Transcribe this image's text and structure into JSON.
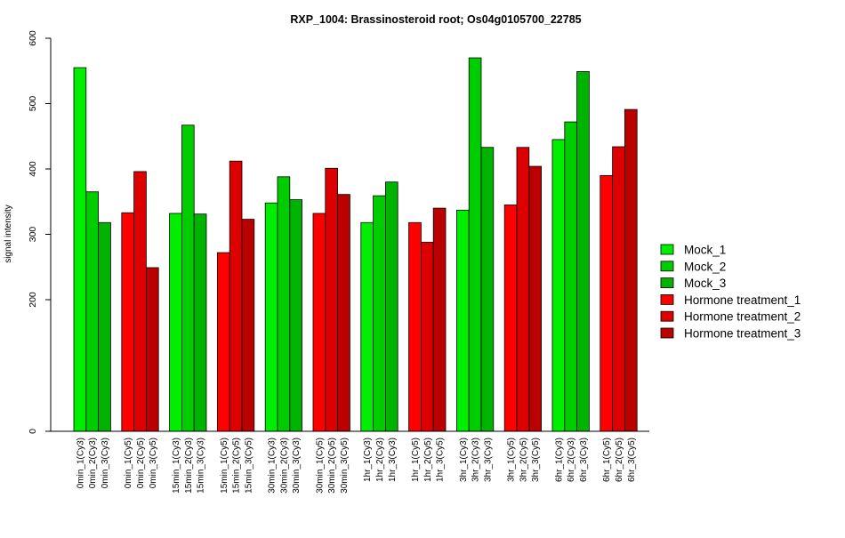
{
  "chart_data": {
    "type": "bar",
    "title": "RXP_1004: Brassinosteroid root; Os04g0105700_22785",
    "xlabel": "",
    "ylabel": "signal intensity",
    "y_ticks": [
      0,
      200,
      300,
      400,
      500,
      600
    ],
    "y_tick_labels": [
      "0",
      "200",
      "300",
      "400",
      "500",
      "600"
    ],
    "grid": false,
    "legend_position": "right",
    "groups": [
      {
        "series": "Mock",
        "labels": [
          "0min_1(Cy3)",
          "0min_2(Cy3)",
          "0min_3(Cy3)"
        ],
        "values": [
          555,
          365,
          318
        ]
      },
      {
        "series": "Hormone treatment",
        "labels": [
          "0min_1(Cy5)",
          "0min_2(Cy5)",
          "0min_3(Cy5)"
        ],
        "values": [
          333,
          396,
          249
        ]
      },
      {
        "series": "Mock",
        "labels": [
          "15min_1(Cy3)",
          "15min_2(Cy3)",
          "15min_3(Cy3)"
        ],
        "values": [
          332,
          467,
          331
        ]
      },
      {
        "series": "Hormone treatment",
        "labels": [
          "15min_1(Cy5)",
          "15min_2(Cy5)",
          "15min_3(Cy5)"
        ],
        "values": [
          272,
          412,
          323
        ]
      },
      {
        "series": "Mock",
        "labels": [
          "30min_1(Cy3)",
          "30min_2(Cy3)",
          "30min_3(Cy3)"
        ],
        "values": [
          348,
          388,
          353
        ]
      },
      {
        "series": "Hormone treatment",
        "labels": [
          "30min_1(Cy5)",
          "30min_2(Cy5)",
          "30min_3(Cy5)"
        ],
        "values": [
          332,
          401,
          361
        ]
      },
      {
        "series": "Mock",
        "labels": [
          "1hr_1(Cy3)",
          "1hr_2(Cy3)",
          "1hr_3(Cy3)"
        ],
        "values": [
          318,
          359,
          380
        ]
      },
      {
        "series": "Hormone treatment",
        "labels": [
          "1hr_1(Cy5)",
          "1hr_2(Cy5)",
          "1hr_3(Cy5)"
        ],
        "values": [
          318,
          288,
          340
        ]
      },
      {
        "series": "Mock",
        "labels": [
          "3hr_1(Cy3)",
          "3hr_2(Cy3)",
          "3hr_3(Cy3)"
        ],
        "values": [
          337,
          570,
          433
        ]
      },
      {
        "series": "Hormone treatment",
        "labels": [
          "3hr_1(Cy5)",
          "3hr_2(Cy5)",
          "3hr_3(Cy5)"
        ],
        "values": [
          345,
          433,
          404
        ]
      },
      {
        "series": "Mock",
        "labels": [
          "6hr_1(Cy3)",
          "6hr_2(Cy3)",
          "6hr_3(Cy3)"
        ],
        "values": [
          445,
          472,
          549
        ]
      },
      {
        "series": "Hormone treatment",
        "labels": [
          "6hr_1(Cy5)",
          "6hr_2(Cy5)",
          "6hr_3(Cy5)"
        ],
        "values": [
          390,
          434,
          491
        ]
      }
    ],
    "colors": {
      "Mock": [
        "#00ee00",
        "#00cd00",
        "#00b300"
      ],
      "Hormone treatment": [
        "#ff0000",
        "#dd0000",
        "#bb0000"
      ]
    },
    "legend": [
      {
        "label": "Mock_1",
        "color": "#00ee00"
      },
      {
        "label": "Mock_2",
        "color": "#00cd00"
      },
      {
        "label": "Mock_3",
        "color": "#00b300"
      },
      {
        "label": "Hormone treatment_1",
        "color": "#ff0000"
      },
      {
        "label": "Hormone treatment_2",
        "color": "#dd0000"
      },
      {
        "label": "Hormone treatment_3",
        "color": "#bb0000"
      }
    ]
  }
}
